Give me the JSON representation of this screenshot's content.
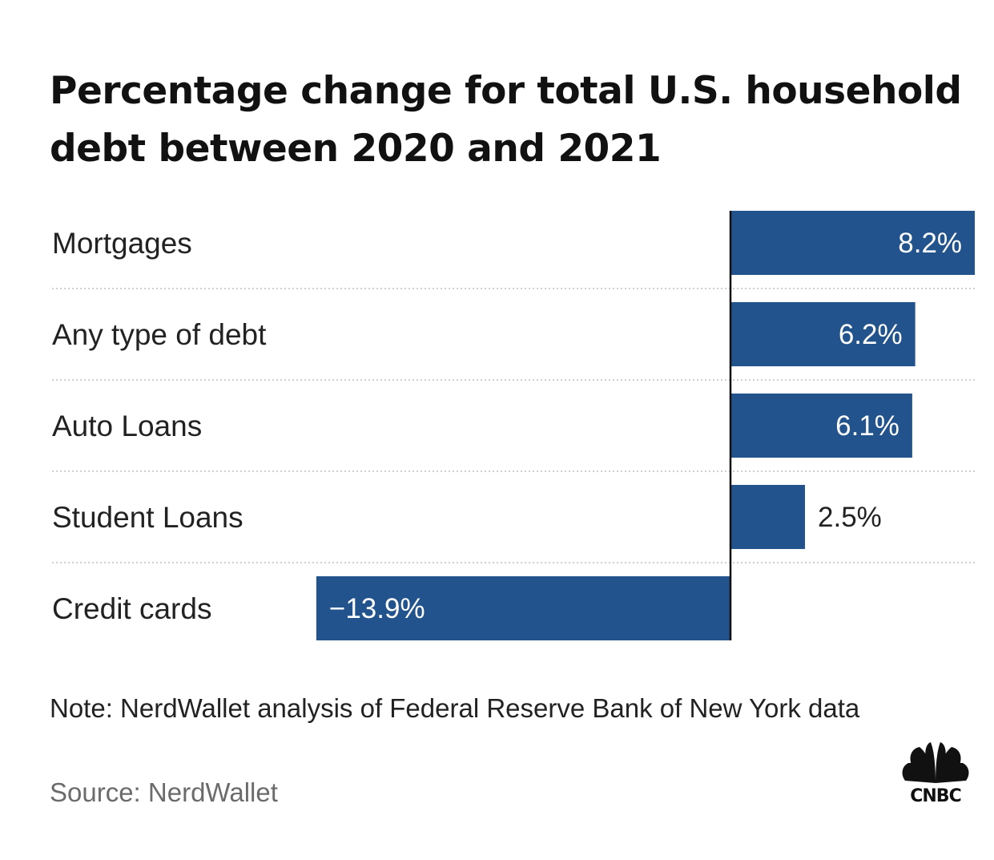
{
  "title": "Percentage change for total U.S. household debt between 2020 and 2021",
  "note": "Note: NerdWallet analysis of Federal Reserve Bank of New York data",
  "source": "Source: NerdWallet",
  "logo": {
    "name": "cnbc-peacock-logo",
    "text": "CNBC"
  },
  "colors": {
    "bar": "#22538c",
    "text": "#222222",
    "axis": "#111111",
    "gridline": "#cfcfcf"
  },
  "chart_data": {
    "type": "bar",
    "orientation": "horizontal",
    "categories": [
      "Mortgages",
      "Any type of debt",
      "Auto Loans",
      "Student Loans",
      "Credit cards"
    ],
    "values": [
      8.2,
      6.2,
      6.1,
      2.5,
      -13.9
    ],
    "value_labels": [
      "8.2%",
      "6.2%",
      "6.1%",
      "2.5%",
      "−13.9%"
    ],
    "unit": "%",
    "xlim": [
      -13.9,
      8.2
    ],
    "grid": false
  }
}
